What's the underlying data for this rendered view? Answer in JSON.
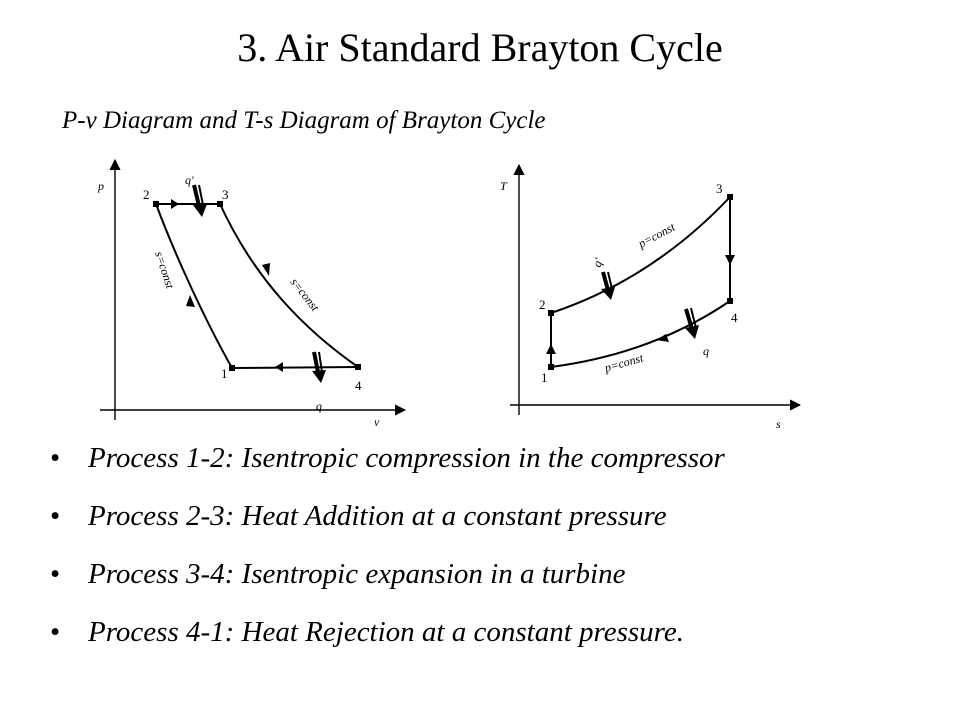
{
  "slide": {
    "title": "3. Air Standard Brayton Cycle",
    "subtitle": "P-v Diagram and T-s Diagram of Brayton Cycle"
  },
  "pv_diagram": {
    "y_axis_label": "p",
    "x_axis_label": "v",
    "points": [
      "1",
      "2",
      "3",
      "4"
    ],
    "heat_in_label": "q'",
    "heat_out_label": "q",
    "compression_label": "s=const",
    "expansion_label": "s=const"
  },
  "ts_diagram": {
    "y_axis_label": "T",
    "x_axis_label": "s",
    "points": [
      "1",
      "2",
      "3",
      "4"
    ],
    "heat_in_label": "q'",
    "heat_out_label": "q",
    "upper_isobar_label": "p=const",
    "lower_isobar_label": "p=const"
  },
  "processes": [
    "Process 1-2: Isentropic compression in the compressor",
    "Process 2-3: Heat Addition at a constant pressure",
    "Process 3-4: Isentropic expansion in a turbine",
    "Process 4-1: Heat Rejection at a constant pressure."
  ],
  "bullet_symbol": "•"
}
